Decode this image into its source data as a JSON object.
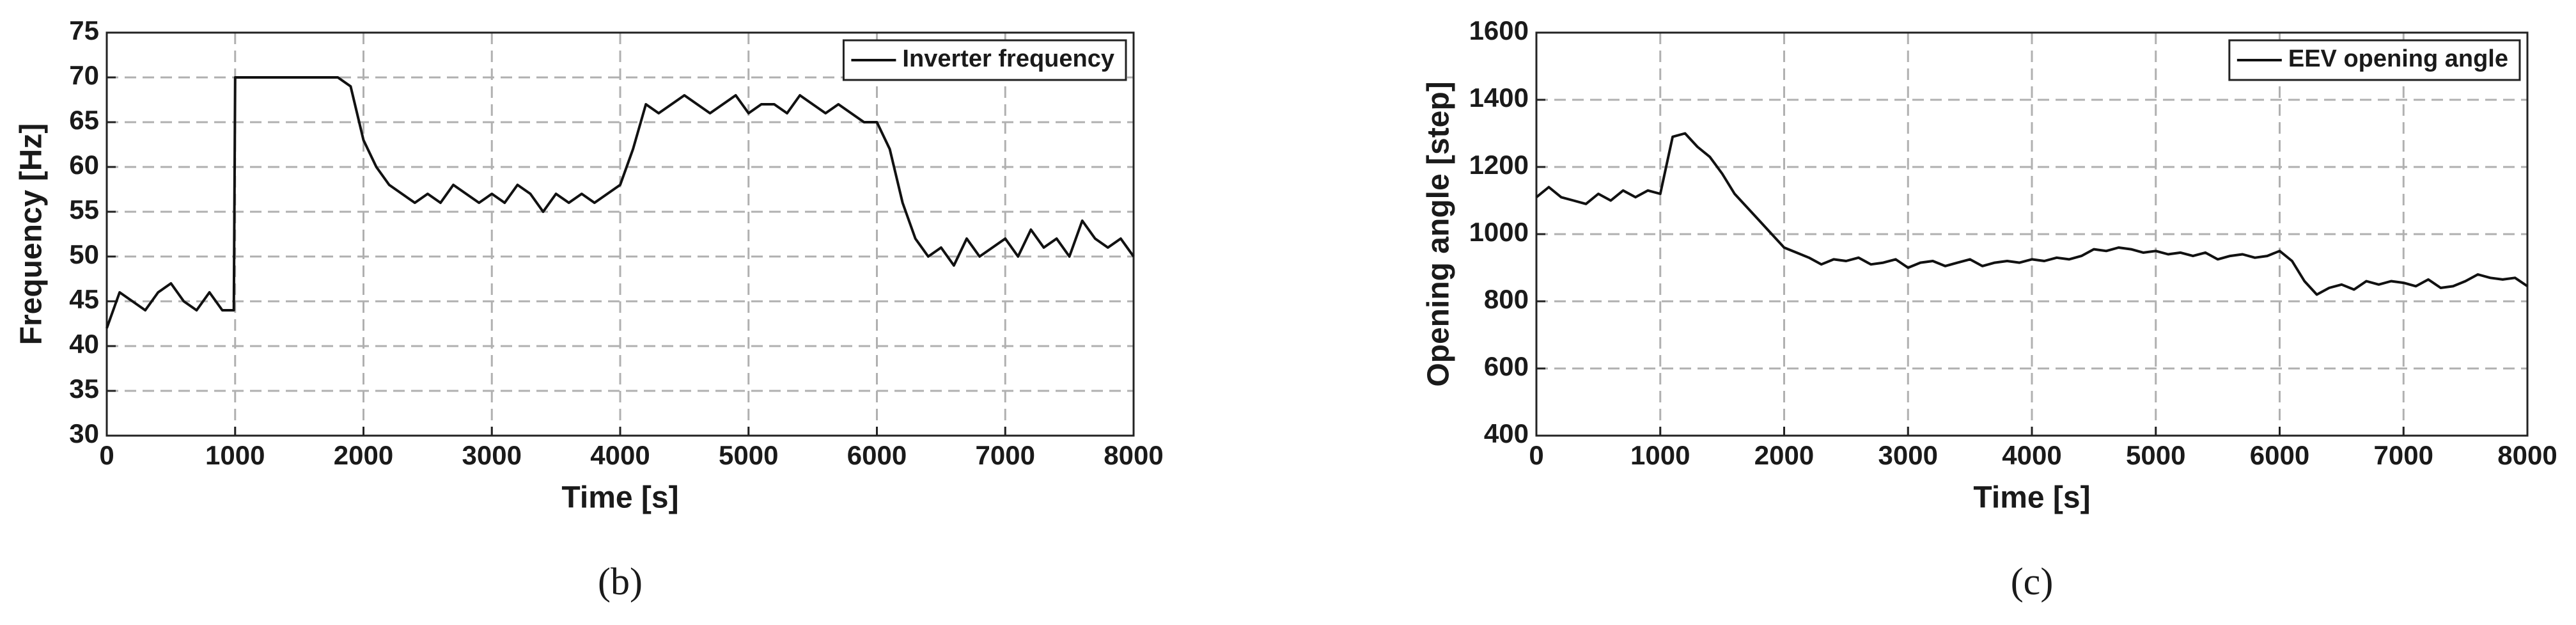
{
  "chart_data": [
    {
      "type": "line",
      "caption": "(b)",
      "xlabel": "Time [s]",
      "ylabel": "Frequency [Hz]",
      "x": [
        0,
        100,
        200,
        300,
        400,
        500,
        600,
        700,
        800,
        900,
        990,
        1000,
        1100,
        1200,
        1300,
        1400,
        1500,
        1600,
        1700,
        1800,
        1900,
        2000,
        2100,
        2200,
        2300,
        2400,
        2500,
        2600,
        2700,
        2800,
        2900,
        3000,
        3100,
        3200,
        3300,
        3400,
        3500,
        3600,
        3700,
        3800,
        3900,
        4000,
        4100,
        4200,
        4300,
        4400,
        4500,
        4600,
        4700,
        4800,
        4900,
        5000,
        5100,
        5200,
        5300,
        5400,
        5500,
        5600,
        5700,
        5800,
        5900,
        6000,
        6100,
        6200,
        6300,
        6400,
        6500,
        6600,
        6700,
        6800,
        6900,
        7000,
        7100,
        7200,
        7300,
        7400,
        7500,
        7600,
        7700,
        7800,
        7900,
        8000
      ],
      "series": [
        {
          "name": "Inverter frequency",
          "color": "#111111",
          "values": [
            42,
            46,
            45,
            44,
            46,
            47,
            45,
            44,
            46,
            44,
            44,
            70,
            70,
            70,
            70,
            70,
            70,
            70,
            70,
            70,
            69,
            63,
            60,
            58,
            57,
            56,
            57,
            56,
            58,
            57,
            56,
            57,
            56,
            58,
            57,
            55,
            57,
            56,
            57,
            56,
            57,
            58,
            62,
            67,
            66,
            67,
            68,
            67,
            66,
            67,
            68,
            66,
            67,
            67,
            66,
            68,
            67,
            66,
            67,
            66,
            65,
            65,
            62,
            56,
            52,
            50,
            51,
            49,
            52,
            50,
            51,
            52,
            50,
            53,
            51,
            52,
            50,
            54,
            52,
            51,
            52,
            50
          ]
        }
      ],
      "xlim": [
        0,
        8000
      ],
      "xticks": [
        0,
        1000,
        2000,
        3000,
        4000,
        5000,
        6000,
        7000,
        8000
      ],
      "ylim": [
        30,
        75
      ],
      "yticks": [
        30,
        35,
        40,
        45,
        50,
        55,
        60,
        65,
        70,
        75
      ],
      "grid": true,
      "legend": "upper right"
    },
    {
      "type": "line",
      "caption": "(c)",
      "xlabel": "Time [s]",
      "ylabel": "Opening angle [step]",
      "x": [
        0,
        100,
        200,
        300,
        400,
        500,
        600,
        700,
        800,
        900,
        1000,
        1100,
        1200,
        1300,
        1400,
        1500,
        1600,
        1700,
        1800,
        1900,
        2000,
        2100,
        2200,
        2300,
        2400,
        2500,
        2600,
        2700,
        2800,
        2900,
        3000,
        3100,
        3200,
        3300,
        3400,
        3500,
        3600,
        3700,
        3800,
        3900,
        4000,
        4100,
        4200,
        4300,
        4400,
        4500,
        4600,
        4700,
        4800,
        4900,
        5000,
        5100,
        5200,
        5300,
        5400,
        5500,
        5600,
        5700,
        5800,
        5900,
        6000,
        6100,
        6200,
        6300,
        6400,
        6500,
        6600,
        6700,
        6800,
        6900,
        7000,
        7100,
        7200,
        7300,
        7400,
        7500,
        7600,
        7700,
        7800,
        7900,
        8000
      ],
      "series": [
        {
          "name": "EEV opening angle",
          "color": "#111111",
          "values": [
            1110,
            1140,
            1110,
            1100,
            1090,
            1120,
            1100,
            1130,
            1110,
            1130,
            1120,
            1290,
            1300,
            1260,
            1230,
            1180,
            1120,
            1080,
            1040,
            1000,
            960,
            945,
            930,
            910,
            925,
            920,
            930,
            910,
            915,
            925,
            900,
            915,
            920,
            905,
            915,
            925,
            905,
            915,
            920,
            915,
            925,
            920,
            930,
            925,
            935,
            955,
            950,
            960,
            955,
            945,
            950,
            940,
            945,
            935,
            945,
            925,
            935,
            940,
            930,
            935,
            950,
            920,
            860,
            820,
            840,
            850,
            835,
            860,
            850,
            860,
            855,
            845,
            865,
            840,
            845,
            860,
            880,
            870,
            865,
            870,
            845
          ]
        }
      ],
      "xlim": [
        0,
        8000
      ],
      "xticks": [
        0,
        1000,
        2000,
        3000,
        4000,
        5000,
        6000,
        7000,
        8000
      ],
      "ylim": [
        400,
        1600
      ],
      "yticks": [
        400,
        600,
        800,
        1000,
        1200,
        1400,
        1600
      ],
      "grid": true,
      "legend": "upper right"
    }
  ]
}
